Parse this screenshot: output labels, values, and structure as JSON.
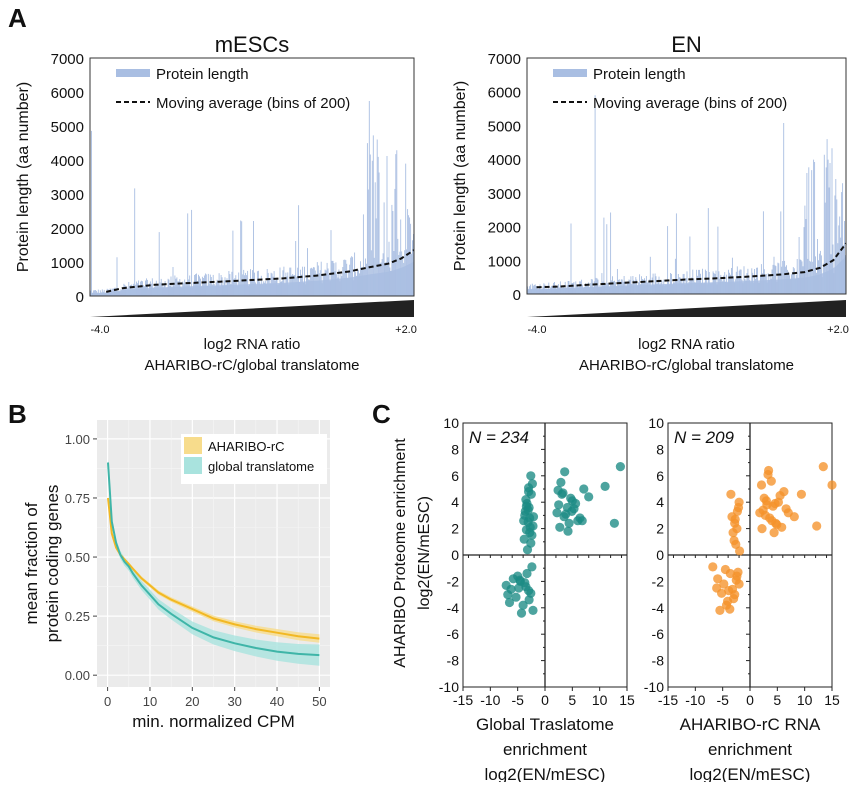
{
  "panel_letters": [
    "A",
    "B",
    "C"
  ],
  "colors": {
    "protein_bar": "#a9bee2",
    "protein_fill": "#b7c8e8",
    "moving_avg": "#111111",
    "aharibo": "#f2b823",
    "aharibo_band": "#f7dc8c",
    "global": "#3fb5a8",
    "global_band": "#a9e3de",
    "teal_points": "#1b8a84",
    "orange_points": "#f5922a",
    "panel_b_bg": "#ebebeb",
    "triangle": "#222222"
  },
  "chart_data": [
    {
      "panel": "A",
      "type": "bar",
      "title": "mESCs",
      "ylabel": "Protein length (aa number)",
      "xlabel": "log2 RNA ratio",
      "xlabel2": "AHARIBO-rC/global translatome",
      "ylim": [
        0,
        7000
      ],
      "yticks": [
        0,
        1000,
        2000,
        3000,
        4000,
        5000,
        6000,
        7000
      ],
      "x_range_labels": [
        "-4.0",
        "+2.0"
      ],
      "legend": [
        "Protein length",
        "Moving average (bins of 200)"
      ],
      "legend_position": "top-left",
      "series": [
        {
          "name": "Protein length",
          "kind": "bars",
          "note_values": "per-gene protein lengths sorted by log2 RNA ratio; baseline ~100-1300, spikes up to ~6800"
        },
        {
          "name": "Moving average (bins of 200)",
          "kind": "dashed-line",
          "x_fraction": [
            0.05,
            0.1,
            0.2,
            0.3,
            0.4,
            0.5,
            0.6,
            0.7,
            0.8,
            0.86,
            0.92,
            0.96,
            1.0
          ],
          "values": [
            120,
            230,
            330,
            380,
            420,
            470,
            520,
            600,
            720,
            840,
            950,
            1100,
            1350
          ]
        }
      ]
    },
    {
      "panel": "A",
      "type": "bar",
      "title": "EN",
      "ylabel": "Protein length (aa number)",
      "xlabel": "log2 RNA ratio",
      "xlabel2": "AHARIBO-rC/global translatome",
      "ylim": [
        0,
        7000
      ],
      "yticks": [
        0,
        1000,
        2000,
        3000,
        4000,
        5000,
        6000,
        7000
      ],
      "x_range_labels": [
        "-4.0",
        "+2.0"
      ],
      "legend": [
        "Protein length",
        "Moving average (bins of 200)"
      ],
      "legend_position": "top-left",
      "series": [
        {
          "name": "Protein length",
          "kind": "bars",
          "note_values": "per-gene protein lengths sorted by log2 RNA ratio; baseline ~150-1500, spikes up to ~6800"
        },
        {
          "name": "Moving average (bins of 200)",
          "kind": "dashed-line",
          "x_fraction": [
            0.03,
            0.1,
            0.2,
            0.3,
            0.4,
            0.5,
            0.6,
            0.7,
            0.8,
            0.87,
            0.92,
            0.96,
            1.0
          ],
          "values": [
            200,
            220,
            280,
            330,
            380,
            430,
            470,
            520,
            580,
            650,
            780,
            1000,
            1500
          ]
        }
      ]
    },
    {
      "panel": "B",
      "type": "line",
      "xlabel": "min. normalized CPM",
      "ylabel": [
        "mean fraction of",
        "protein coding genes"
      ],
      "xlim": [
        -2.5,
        52.5
      ],
      "ylim": [
        -0.05,
        1.08
      ],
      "xticks": [
        0,
        10,
        20,
        30,
        40,
        50
      ],
      "yticks": [
        0.0,
        0.25,
        0.5,
        0.75,
        1.0
      ],
      "ytick_labels": [
        "0.00",
        "0.25",
        "0.50",
        "0.75",
        "1.00"
      ],
      "grid": true,
      "legend_position": "top-right",
      "x": [
        0.1,
        1,
        2,
        3,
        4,
        5,
        6,
        8,
        10,
        12,
        15,
        20,
        25,
        30,
        35,
        40,
        45,
        50
      ],
      "series": [
        {
          "name": "AHARIBO-rC",
          "values": [
            0.75,
            0.6,
            0.54,
            0.51,
            0.49,
            0.47,
            0.45,
            0.41,
            0.38,
            0.35,
            0.32,
            0.28,
            0.24,
            0.215,
            0.195,
            0.18,
            0.165,
            0.155
          ]
        },
        {
          "name": "global translatome",
          "values": [
            0.9,
            0.65,
            0.56,
            0.51,
            0.48,
            0.46,
            0.43,
            0.38,
            0.34,
            0.3,
            0.26,
            0.2,
            0.16,
            0.135,
            0.115,
            0.1,
            0.09,
            0.085
          ],
          "band": 0.03
        }
      ]
    },
    {
      "panel": "C",
      "type": "scatter",
      "annotation": "N = 234",
      "xlabel": [
        "Global Traslatome",
        "enrichment",
        "log2(EN/mESC)"
      ],
      "ylabel": [
        "AHARIBO Proteome enrichment",
        "log2(EN/mESC)"
      ],
      "xlim": [
        -15,
        15
      ],
      "ylim": [
        -10,
        10
      ],
      "xticks": [
        -15,
        -10,
        -5,
        0,
        5,
        10,
        15
      ],
      "yticks": [
        -10,
        -8,
        -6,
        -4,
        -2,
        0,
        2,
        4,
        6,
        8,
        10
      ],
      "x": [
        -2.8,
        -3.1,
        -3.4,
        -2.5,
        -3.7,
        -2.2,
        -3.0,
        -3.3,
        -2.6,
        -3.9,
        -2.4,
        -3.5,
        -2.9,
        -3.2,
        -2.7,
        -3.6,
        -2.3,
        -3.8,
        -2.1,
        -3.0,
        -2.6,
        -3.4,
        -2.8,
        -3.1,
        2.5,
        3.1,
        3.8,
        4.4,
        5.0,
        2.9,
        3.5,
        4.1,
        4.7,
        2.2,
        6.0,
        5.6,
        7.1,
        3.3,
        2.7,
        4.9,
        6.4,
        8.0,
        11.0,
        13.8,
        12.7,
        3.6,
        2.4,
        5.3,
        4.2,
        6.8,
        -4.5,
        -6.2,
        -5.3,
        -7.1,
        -3.3,
        -4.0,
        -2.6,
        -5.8,
        -4.8,
        -2.2,
        -6.8,
        -3.7,
        -5.0,
        -2.9,
        -4.3,
        -3.0,
        -2.4,
        -6.5,
        -4.6,
        -3.5
      ],
      "y": [
        2.8,
        3.4,
        1.9,
        4.6,
        3.0,
        2.2,
        5.1,
        3.9,
        0.9,
        2.6,
        1.5,
        4.2,
        3.6,
        0.4,
        2.1,
        3.3,
        5.4,
        1.2,
        2.9,
        4.8,
        6.0,
        3.7,
        1.7,
        2.5,
        3.8,
        4.6,
        3.1,
        2.4,
        4.1,
        5.5,
        2.9,
        3.6,
        4.3,
        3.2,
        2.6,
        3.9,
        5.0,
        4.7,
        2.1,
        3.3,
        2.8,
        4.4,
        5.2,
        6.7,
        2.4,
        6.3,
        4.9,
        3.5,
        1.8,
        2.6,
        -2.0,
        -2.6,
        -3.2,
        -2.3,
        -1.4,
        -3.8,
        -2.9,
        -1.8,
        -2.5,
        -4.2,
        -3.0,
        -2.1,
        -1.6,
        -3.4,
        -4.4,
        -2.7,
        -0.9,
        -3.6,
        -1.9,
        -2.4
      ]
    },
    {
      "panel": "C",
      "type": "scatter",
      "annotation": "N = 209",
      "xlabel": [
        "AHARIBO-rC RNA",
        "enrichment",
        "log2(EN/mESC)"
      ],
      "ylabel": [],
      "xlim": [
        -15,
        15
      ],
      "ylim": [
        -10,
        10
      ],
      "xticks": [
        -15,
        -10,
        -5,
        0,
        5,
        10,
        15
      ],
      "yticks": [
        -10,
        -8,
        -6,
        -4,
        -2,
        0,
        2,
        4,
        6,
        8,
        10
      ],
      "x": [
        -2.8,
        -2.3,
        -3.1,
        -2.0,
        -2.6,
        -3.3,
        -2.1,
        -2.9,
        -2.4,
        -3.5,
        -1.9,
        -2.7,
        2.4,
        3.0,
        3.6,
        4.2,
        4.9,
        5.5,
        2.1,
        2.8,
        3.3,
        4.0,
        4.6,
        6.2,
        7.0,
        5.8,
        2.6,
        3.9,
        4.4,
        6.6,
        8.1,
        9.4,
        12.2,
        13.4,
        15.0,
        3.1,
        4.7,
        5.2,
        3.4,
        2.2,
        1.8,
        -3.6,
        -4.8,
        -2.8,
        -5.9,
        -3.2,
        -6.8,
        -4.1,
        -2.4,
        -5.2,
        -3.7,
        -2.0,
        -4.5,
        -6.1,
        -3.0,
        -2.5,
        -5.5,
        -3.9,
        -4.3,
        -2.2
      ],
      "y": [
        2.4,
        3.3,
        1.7,
        4.0,
        0.8,
        2.9,
        3.6,
        1.1,
        2.0,
        4.6,
        0.3,
        2.7,
        3.4,
        4.1,
        2.8,
        3.7,
        2.3,
        4.5,
        5.3,
        3.0,
        6.1,
        2.6,
        3.9,
        4.8,
        3.2,
        2.1,
        4.3,
        5.6,
        1.7,
        3.5,
        2.9,
        4.6,
        2.2,
        6.7,
        5.3,
        3.8,
        2.4,
        4.0,
        6.4,
        2.0,
        3.2,
        -1.4,
        -2.2,
        -3.0,
        -1.8,
        -2.6,
        -0.9,
        -3.5,
        -1.6,
        -2.9,
        -4.1,
        -2.2,
        -1.1,
        -2.5,
        -3.3,
        -1.9,
        -4.2,
        -2.7,
        -3.8,
        -1.3
      ]
    }
  ]
}
